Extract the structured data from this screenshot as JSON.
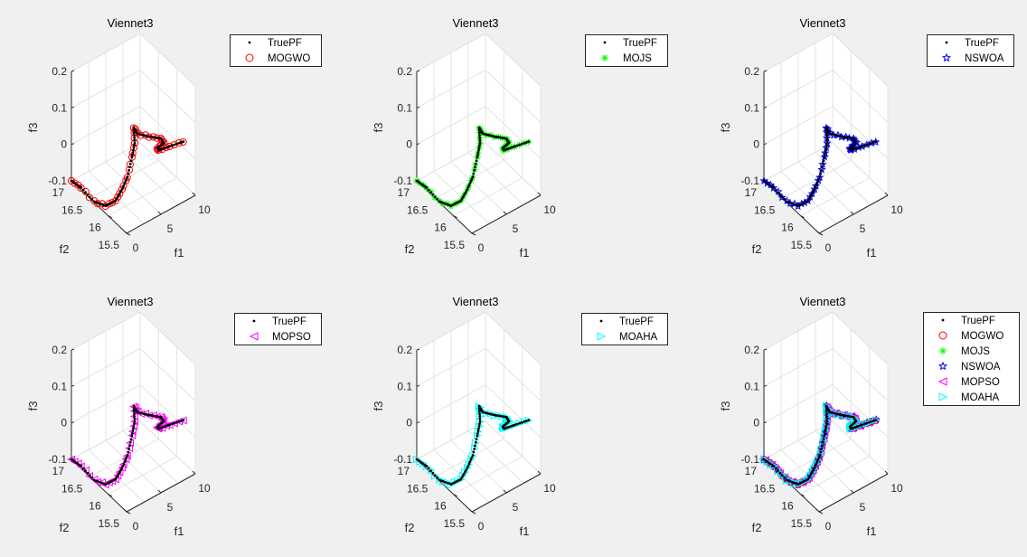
{
  "figure": {
    "background": "#f0f0f0"
  },
  "chart_data": [
    {
      "type": "scatter",
      "title": "Viennet3",
      "xlabel": "f1",
      "ylabel": "f2",
      "zlabel": "f3",
      "xlim": [
        0,
        10
      ],
      "ylim": [
        15.5,
        17
      ],
      "zlim": [
        -0.1,
        0.2
      ],
      "xticks": [
        "0",
        "5",
        "10"
      ],
      "yticks": [
        "15.5",
        "16",
        "16.5",
        "17"
      ],
      "zticks": [
        "-0.1",
        "0",
        "0.1",
        "0.2"
      ],
      "grid": true,
      "legend_position": "outside-top-right",
      "series": [
        {
          "name": "MOGWO",
          "color": "#ff0000",
          "marker": "circle"
        }
      ]
    },
    {
      "type": "scatter",
      "title": "Viennet3",
      "xlabel": "f1",
      "ylabel": "f2",
      "zlabel": "f3",
      "xlim": [
        0,
        10
      ],
      "ylim": [
        15.5,
        17
      ],
      "zlim": [
        -0.1,
        0.2
      ],
      "xticks": [
        "0",
        "5",
        "10"
      ],
      "yticks": [
        "15.5",
        "16",
        "16.5",
        "17"
      ],
      "zticks": [
        "-0.1",
        "0",
        "0.1",
        "0.2"
      ],
      "grid": true,
      "legend_position": "outside-top-right",
      "series": [
        {
          "name": "MOJS",
          "color": "#00ff00",
          "marker": "asterisk"
        }
      ]
    },
    {
      "type": "scatter",
      "title": "Viennet3",
      "xlabel": "f1",
      "ylabel": "f2",
      "zlabel": "f3",
      "xlim": [
        0,
        10
      ],
      "ylim": [
        15.5,
        17
      ],
      "zlim": [
        -0.1,
        0.2
      ],
      "xticks": [
        "0",
        "5",
        "10"
      ],
      "yticks": [
        "15.5",
        "16",
        "16.5",
        "17"
      ],
      "zticks": [
        "-0.1",
        "0",
        "0.1",
        "0.2"
      ],
      "grid": true,
      "legend_position": "outside-top-right",
      "series": [
        {
          "name": "NSWOA",
          "color": "#0000ff",
          "marker": "pentagram"
        }
      ]
    },
    {
      "type": "scatter",
      "title": "Viennet3",
      "xlabel": "f1",
      "ylabel": "f2",
      "zlabel": "f3",
      "xlim": [
        0,
        10
      ],
      "ylim": [
        15.5,
        17
      ],
      "zlim": [
        -0.1,
        0.2
      ],
      "xticks": [
        "0",
        "5",
        "10"
      ],
      "yticks": [
        "15.5",
        "16",
        "16.5",
        "17"
      ],
      "zticks": [
        "-0.1",
        "0",
        "0.1",
        "0.2"
      ],
      "grid": true,
      "legend_position": "outside-top-right",
      "series": [
        {
          "name": "MOPSO",
          "color": "#ff00ff",
          "marker": "triangle-left"
        }
      ]
    },
    {
      "type": "scatter",
      "title": "Viennet3",
      "xlabel": "f1",
      "ylabel": "f2",
      "zlabel": "f3",
      "xlim": [
        0,
        10
      ],
      "ylim": [
        15.5,
        17
      ],
      "zlim": [
        -0.1,
        0.2
      ],
      "xticks": [
        "0",
        "5",
        "10"
      ],
      "yticks": [
        "15.5",
        "16",
        "16.5",
        "17"
      ],
      "zticks": [
        "-0.1",
        "0",
        "0.1",
        "0.2"
      ],
      "grid": true,
      "legend_position": "outside-top-right",
      "series": [
        {
          "name": "MOAHA",
          "color": "#00ffff",
          "marker": "triangle-right"
        }
      ]
    },
    {
      "type": "scatter",
      "title": "Viennet3",
      "xlabel": "f1",
      "ylabel": "f2",
      "zlabel": "f3",
      "xlim": [
        0,
        10
      ],
      "ylim": [
        15.5,
        17
      ],
      "zlim": [
        -0.1,
        0.2
      ],
      "xticks": [
        "0",
        "5",
        "10"
      ],
      "yticks": [
        "15.5",
        "16",
        "16.5",
        "17"
      ],
      "zticks": [
        "-0.1",
        "0",
        "0.1",
        "0.2"
      ],
      "grid": true,
      "legend_position": "outside-top-right",
      "series": [
        {
          "name": "MOGWO",
          "color": "#ff0000",
          "marker": "circle"
        },
        {
          "name": "MOJS",
          "color": "#00ff00",
          "marker": "asterisk"
        },
        {
          "name": "NSWOA",
          "color": "#0000ff",
          "marker": "pentagram"
        },
        {
          "name": "MOPSO",
          "color": "#ff00ff",
          "marker": "triangle-left"
        },
        {
          "name": "MOAHA",
          "color": "#00ffff",
          "marker": "triangle-right"
        }
      ]
    }
  ],
  "true_pf": {
    "name": "TruePF",
    "color": "#000000",
    "marker": "point",
    "points": [
      [
        0.0,
        17.0,
        -0.1
      ],
      [
        0.25,
        16.78,
        -0.1
      ],
      [
        0.08,
        16.4,
        -0.1
      ],
      [
        0.6,
        16.18,
        -0.096
      ],
      [
        1.07,
        16.0,
        -0.07
      ],
      [
        1.35,
        15.88,
        -0.031
      ],
      [
        1.74,
        15.8,
        0.008
      ],
      [
        2.0,
        15.73,
        0.065
      ],
      [
        2.15,
        15.68,
        0.108
      ],
      [
        1.86,
        15.65,
        0.156
      ],
      [
        2.38,
        15.65,
        0.134
      ],
      [
        4.1,
        15.65,
        0.108
      ],
      [
        5.8,
        15.65,
        0.085
      ],
      [
        6.2,
        15.65,
        0.069
      ],
      [
        5.3,
        15.65,
        0.064
      ],
      [
        5.1,
        15.58,
        0.067
      ],
      [
        6.7,
        15.58,
        0.061
      ],
      [
        8.7,
        15.58,
        0.053
      ]
    ]
  }
}
